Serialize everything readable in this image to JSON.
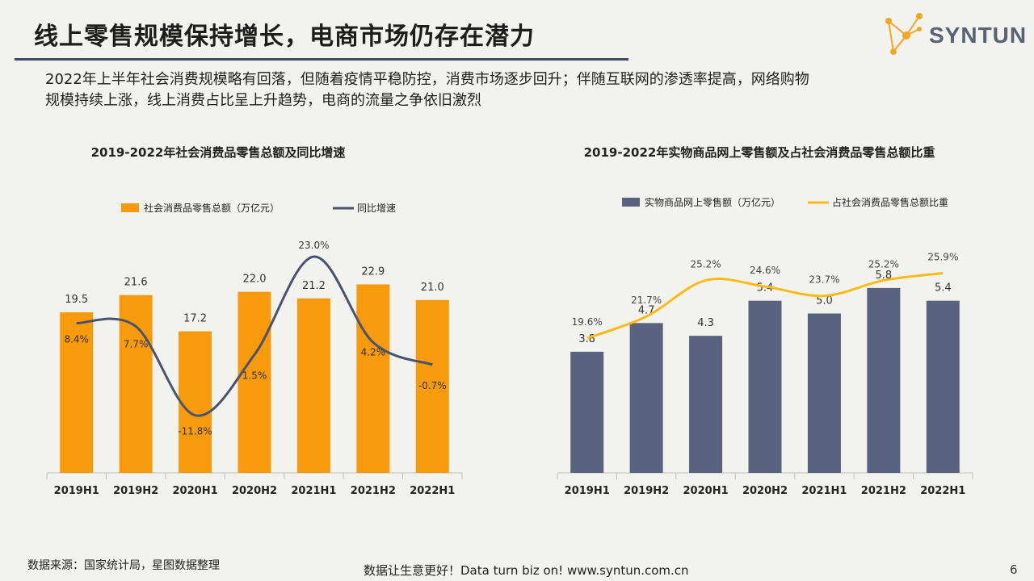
{
  "header": {
    "title": "线上零售规模保持增长，电商市场仍存在潜力",
    "logo_text": "SYNTUN"
  },
  "intro": {
    "line1": "2022年上半年社会消费规模略有回落，但随着疫情平稳防控，消费市场逐步回升；伴随互联网的渗透率提高，网络购物",
    "line2": "规模持续上涨，线上消费占比呈上升趋势，电商的流量之争依旧激烈"
  },
  "footer": {
    "source": "数据来源：国家统计局，星图数据整理",
    "slogan": "数据让生意更好！Data turn biz on!  www.syntun.com.cn",
    "page": "6"
  },
  "colors": {
    "orange": "#f79a0c",
    "slate": "#59627e",
    "yellow": "#fbbb17",
    "line_dark": "#4a5270",
    "rule": "#3f4a66"
  },
  "chart_data": [
    {
      "type": "bar",
      "title": "2019-2022年社会消费品零售总额及同比增速",
      "categories": [
        "2019H1",
        "2019H2",
        "2020H1",
        "2020H2",
        "2021H1",
        "2021H2",
        "2022H1"
      ],
      "series": [
        {
          "name": "社会消费品零售总额（万亿元）",
          "kind": "bar",
          "values": [
            19.5,
            21.6,
            17.2,
            22.0,
            21.2,
            22.9,
            21.0
          ]
        },
        {
          "name": "同比增速",
          "kind": "line",
          "values": [
            8.4,
            7.7,
            -11.8,
            1.5,
            23.0,
            4.2,
            -0.7
          ],
          "unit": "%"
        }
      ],
      "legend": "top",
      "grid": false
    },
    {
      "type": "bar",
      "title": "2019-2022年实物商品网上零售额及占社会消费品零售总额比重",
      "categories": [
        "2019H1",
        "2019H2",
        "2020H1",
        "2020H2",
        "2021H1",
        "2021H2",
        "2022H1"
      ],
      "series": [
        {
          "name": "实物商品网上零售额（万亿元）",
          "kind": "bar",
          "values": [
            3.8,
            4.7,
            4.3,
            5.4,
            5.0,
            5.8,
            5.4
          ]
        },
        {
          "name": "占社会消费品零售总额比重",
          "kind": "line",
          "values": [
            19.6,
            21.7,
            25.2,
            24.6,
            23.7,
            25.2,
            25.9
          ],
          "unit": "%"
        }
      ],
      "legend": "top",
      "grid": false
    }
  ]
}
